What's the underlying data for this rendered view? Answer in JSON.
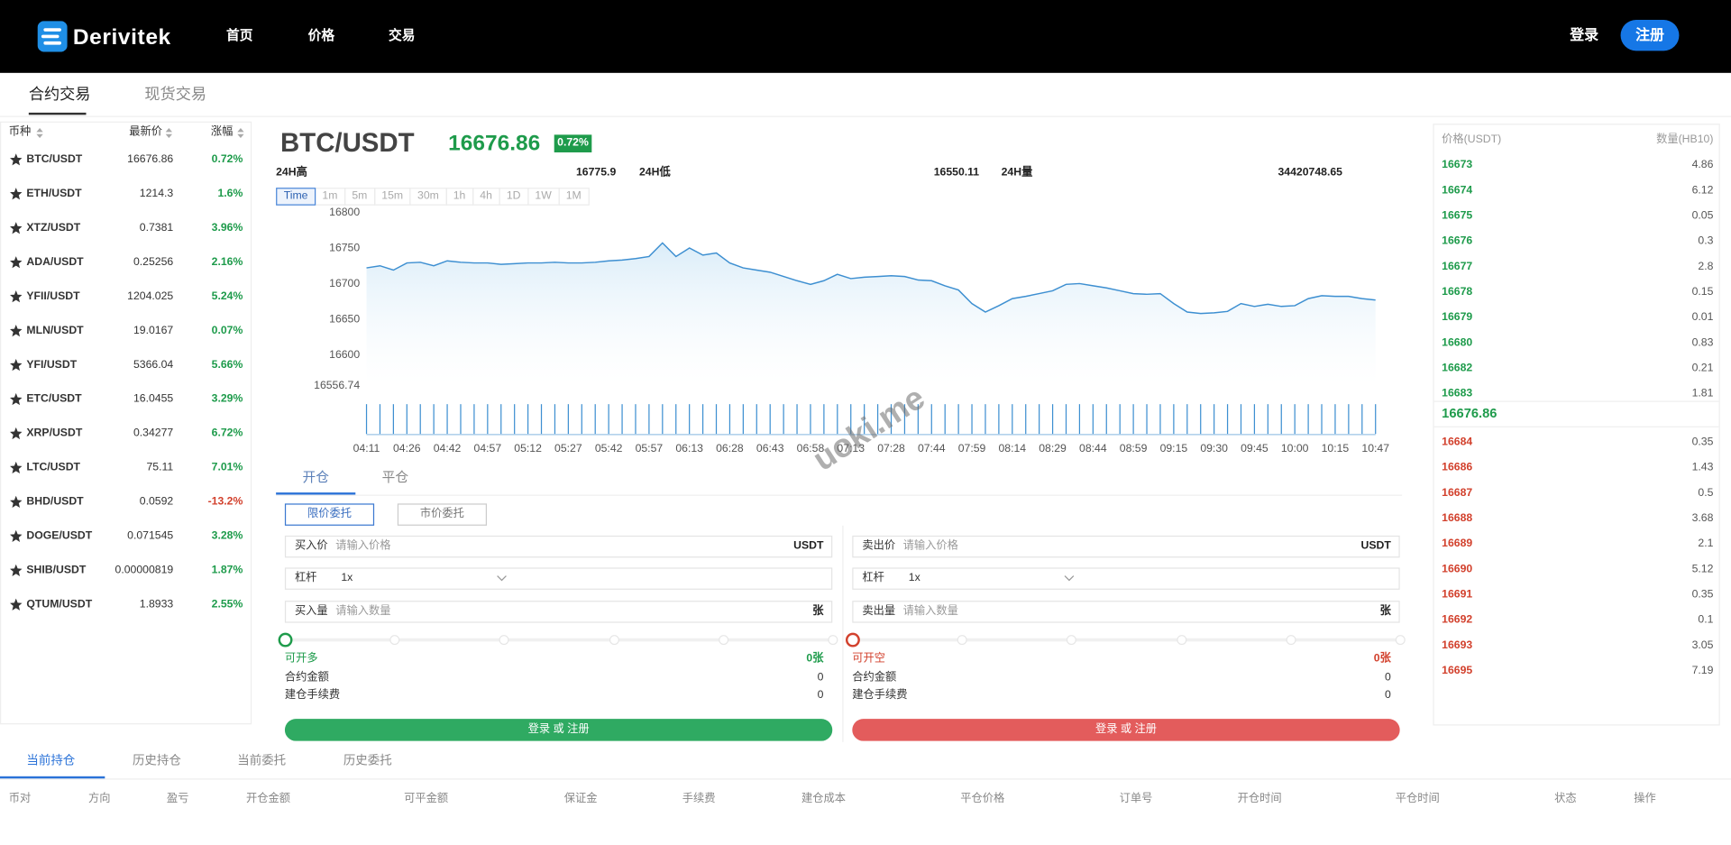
{
  "header": {
    "logo": "Derivitek",
    "nav": [
      "首页",
      "价格",
      "交易"
    ],
    "login": "登录",
    "register": "注册"
  },
  "tabs": [
    "合约交易",
    "现货交易"
  ],
  "market": {
    "columns": [
      "币种",
      "最新价",
      "涨幅"
    ],
    "rows": [
      [
        "BTC/USDT",
        "16676.86",
        "0.72%"
      ],
      [
        "ETH/USDT",
        "1214.3",
        "1.6%"
      ],
      [
        "XTZ/USDT",
        "0.7381",
        "3.96%"
      ],
      [
        "ADA/USDT",
        "0.25256",
        "2.16%"
      ],
      [
        "YFII/USDT",
        "1204.025",
        "5.24%"
      ],
      [
        "MLN/USDT",
        "19.0167",
        "0.07%"
      ],
      [
        "YFI/USDT",
        "5366.04",
        "5.66%"
      ],
      [
        "ETC/USDT",
        "16.0455",
        "3.29%"
      ],
      [
        "XRP/USDT",
        "0.34277",
        "6.72%"
      ],
      [
        "LTC/USDT",
        "75.11",
        "7.01%"
      ],
      [
        "BHD/USDT",
        "0.0592",
        "-13.2%"
      ],
      [
        "DOGE/USDT",
        "0.071545",
        "3.28%"
      ],
      [
        "SHIB/USDT",
        "0.00000819",
        "1.87%"
      ],
      [
        "QTUM/USDT",
        "1.8933",
        "2.55%"
      ]
    ]
  },
  "ticker": {
    "pair": "BTC/USDT",
    "price": "16676.86",
    "change": "0.72%",
    "stats": [
      [
        "24H高",
        "16775.9"
      ],
      [
        "24H低",
        "16550.11"
      ],
      [
        "24H量",
        "34420748.65"
      ]
    ]
  },
  "intervals": [
    "Time",
    "1m",
    "5m",
    "15m",
    "30m",
    "1h",
    "4h",
    "1D",
    "1W",
    "1M"
  ],
  "chart_data": {
    "type": "line",
    "color": "#3d8fd1",
    "categories": [
      "04:11",
      null,
      null,
      "04:26",
      null,
      null,
      "04:42",
      null,
      null,
      "04:57",
      null,
      null,
      "05:12",
      null,
      null,
      "05:27",
      null,
      null,
      "05:42",
      null,
      null,
      "05:57",
      null,
      null,
      "06:13",
      null,
      null,
      "06:28",
      null,
      null,
      "06:43",
      null,
      null,
      "06:58",
      null,
      null,
      "07:13",
      null,
      null,
      "07:28",
      null,
      null,
      "07:44",
      null,
      null,
      "07:59",
      null,
      null,
      "08:14",
      null,
      null,
      "08:29",
      null,
      null,
      "08:44",
      null,
      null,
      "08:59",
      null,
      null,
      "09:15",
      null,
      null,
      "09:30",
      null,
      null,
      "09:45",
      null,
      null,
      "10:00",
      null,
      null,
      "10:15",
      null,
      null,
      "10:47"
    ],
    "values": [
      16720,
      16723,
      16717,
      16727,
      16728,
      16723,
      16730,
      16728,
      16727,
      16727,
      16725,
      16726,
      16727,
      16727,
      16728,
      16727,
      16727,
      16728,
      16730,
      16731,
      16733,
      16736,
      16755,
      16736,
      16748,
      16738,
      16741,
      16727,
      16720,
      16717,
      16714,
      16708,
      16702,
      16697,
      16702,
      16711,
      16705,
      16707,
      16708,
      16709,
      16708,
      16703,
      16702,
      16695,
      16689,
      16670,
      16658,
      16667,
      16677,
      16680,
      16684,
      16688,
      16697,
      16698,
      16695,
      16692,
      16688,
      16684,
      16683,
      16684,
      16670,
      16658,
      16656,
      16657,
      16659,
      16670,
      16666,
      16669,
      16666,
      16667,
      16677,
      16681,
      16680,
      16680,
      16677,
      16675
    ],
    "ylim": [
      16556.74,
      16800
    ],
    "yticks": [
      16556.74,
      16600,
      16650,
      16700,
      16750,
      16800
    ]
  },
  "watermark": "uoki.me",
  "order_form": {
    "tabs": [
      "开仓",
      "平仓"
    ],
    "types": [
      "限价委托",
      "市价委托"
    ],
    "sides": [
      {
        "fields": [
          {
            "label": "买入价",
            "placeholder": "请输入价格",
            "unit": "USDT"
          },
          {
            "label": "杠杆",
            "value": "1x"
          },
          {
            "label": "买入量",
            "placeholder": "请输入数量",
            "unit": "张"
          }
        ],
        "available_label": "可开多",
        "available": "0张",
        "amount_label": "合约金额",
        "amount": "0",
        "fee_label": "建仓手续费",
        "fee": "0",
        "button": "登录 或 注册"
      },
      {
        "fields": [
          {
            "label": "卖出价",
            "placeholder": "请输入价格",
            "unit": "USDT"
          },
          {
            "label": "杠杆",
            "value": "1x"
          },
          {
            "label": "卖出量",
            "placeholder": "请输入数量",
            "unit": "张"
          }
        ],
        "available_label": "可开空",
        "available": "0张",
        "amount_label": "合约金额",
        "amount": "0",
        "fee_label": "建仓手续费",
        "fee": "0",
        "button": "登录 或 注册"
      }
    ]
  },
  "order_book": {
    "columns": [
      "价格(USDT)",
      "数量(HB10)"
    ],
    "asks": [
      [
        "16673",
        "4.86"
      ],
      [
        "16674",
        "6.12"
      ],
      [
        "16675",
        "0.05"
      ],
      [
        "16676",
        "0.3"
      ],
      [
        "16677",
        "2.8"
      ],
      [
        "16678",
        "0.15"
      ],
      [
        "16679",
        "0.01"
      ],
      [
        "16680",
        "0.83"
      ],
      [
        "16682",
        "0.21"
      ],
      [
        "16683",
        "1.81"
      ]
    ],
    "last": "16676.86",
    "bids": [
      [
        "16684",
        "0.35"
      ],
      [
        "16686",
        "1.43"
      ],
      [
        "16687",
        "0.5"
      ],
      [
        "16688",
        "3.68"
      ],
      [
        "16689",
        "2.1"
      ],
      [
        "16690",
        "5.12"
      ],
      [
        "16691",
        "0.35"
      ],
      [
        "16692",
        "0.1"
      ],
      [
        "16693",
        "3.05"
      ],
      [
        "16695",
        "7.19"
      ]
    ]
  },
  "positions": {
    "tabs": [
      "当前持仓",
      "历史持仓",
      "当前委托",
      "历史委托"
    ],
    "columns": [
      "币对",
      "方向",
      "盈亏",
      "开仓金额",
      "可平金额",
      "保证金",
      "手续费",
      "建仓成本",
      "平仓价格",
      "订单号",
      "开仓时间",
      "平仓时间",
      "状态",
      "操作"
    ]
  }
}
